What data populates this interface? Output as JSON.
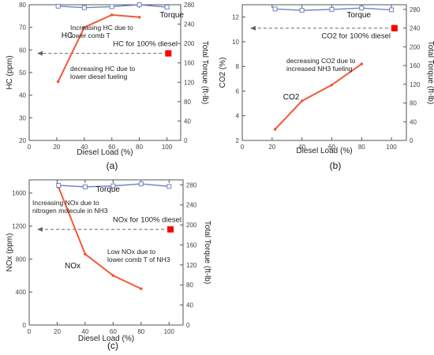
{
  "colors": {
    "hc_nox_co2_line": "#f05a3a",
    "torque_line": "#6f83c4",
    "diesel_marker": "#ff0000",
    "reference_line": "#666666",
    "axis": "#555555"
  },
  "chart_data": [
    {
      "id": "a",
      "type": "line",
      "panel_label": "(a)",
      "xlabel": "Diesel Load (%)",
      "ylabel": "HC (ppm)",
      "y2label": "Total Torque (ft-lb)",
      "xlim": [
        0,
        110
      ],
      "ylim": [
        20,
        80
      ],
      "y2lim": [
        0,
        280
      ],
      "xticks": [
        0,
        20,
        40,
        60,
        80,
        100
      ],
      "yticks": [
        20,
        30,
        40,
        50,
        60,
        70,
        80
      ],
      "y2ticks": [
        0,
        40,
        80,
        120,
        160,
        200,
        240,
        280
      ],
      "grid": false,
      "series": [
        {
          "name": "HC",
          "axis": "left",
          "x": [
            21,
            40,
            60,
            80
          ],
          "y": [
            46,
            70,
            75.5,
            74.5
          ]
        },
        {
          "name": "Torque",
          "axis": "right",
          "x": [
            21,
            40,
            60,
            80,
            100
          ],
          "y": [
            277,
            274,
            276,
            280,
            275
          ]
        }
      ],
      "reference": {
        "label": "HC for 100% diesel",
        "axis": "left",
        "y": 58.5,
        "marker_x": 101
      },
      "annotations": [
        "Increasing HC due to\nlower comb T",
        "decreasing HC due to\nlower diesel fueling"
      ]
    },
    {
      "id": "b",
      "type": "line",
      "panel_label": "(b)",
      "xlabel": "Diesel Load (%)",
      "ylabel": "CO2 (%)",
      "y2label": "Total Torque (ft-lb)",
      "xlim": [
        0,
        110
      ],
      "ylim": [
        2,
        13
      ],
      "y2lim": [
        0,
        290
      ],
      "xticks": [
        0,
        20,
        40,
        60,
        80,
        100
      ],
      "yticks": [
        2,
        4,
        6,
        8,
        10,
        12
      ],
      "y2ticks": [
        0,
        40,
        80,
        120,
        160,
        200,
        240,
        280
      ],
      "grid": false,
      "series": [
        {
          "name": "CO2",
          "axis": "left",
          "x": [
            22,
            40,
            60,
            80
          ],
          "y": [
            2.9,
            5.2,
            6.5,
            8.2
          ]
        },
        {
          "name": "Torque",
          "axis": "right",
          "x": [
            22,
            40,
            60,
            80,
            100
          ],
          "y": [
            281,
            278,
            280,
            283,
            279
          ]
        }
      ],
      "reference": {
        "label": "CO2 for 100% diesel",
        "axis": "left",
        "y": 11.1,
        "marker_x": 102
      },
      "annotations": [
        "decreasing CO2 due to\nincreased NH3 fueling"
      ]
    },
    {
      "id": "c",
      "type": "line",
      "panel_label": "(c)",
      "xlabel": "Diesel Load (%)",
      "ylabel": "NOx (ppm)",
      "y2label": "Total Torque (ft-lb)",
      "xlim": [
        0,
        110
      ],
      "ylim": [
        0,
        1760
      ],
      "y2lim": [
        0,
        290
      ],
      "xticks": [
        0,
        20,
        40,
        60,
        80,
        100
      ],
      "yticks": [
        0,
        400,
        800,
        1200,
        1600
      ],
      "y2ticks": [
        0,
        40,
        80,
        120,
        160,
        200,
        240,
        280
      ],
      "grid": false,
      "series": [
        {
          "name": "NOx",
          "axis": "left",
          "x": [
            21,
            40,
            60,
            80
          ],
          "y": [
            1670,
            860,
            600,
            440
          ]
        },
        {
          "name": "Torque",
          "axis": "right",
          "x": [
            21,
            40,
            60,
            80,
            100
          ],
          "y": [
            279,
            276,
            278,
            282,
            277
          ]
        }
      ],
      "reference": {
        "label": "NOx for 100% diesel",
        "axis": "left",
        "y": 1160,
        "marker_x": 101
      },
      "annotations": [
        "Increasing NOx due to\nnitrogen molecule in NH3",
        "Low NOx due to\nlower comb T of NH3"
      ]
    }
  ]
}
